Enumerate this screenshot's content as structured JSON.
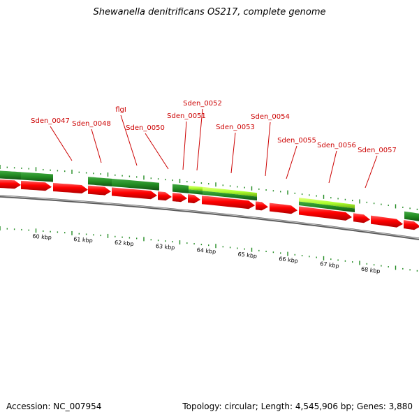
{
  "title": "Shewanella denitrificans OS217, complete genome",
  "footer": {
    "accession": "Accession: NC_007954",
    "summary": "Topology: circular; Length: 4,545,906 bp; Genes: 3,880"
  },
  "colors": {
    "forward_cds": "#ff0000",
    "reverse_cds": "#228b22",
    "reverse_cds_highlight": "#adff2f",
    "backbone": "#808080",
    "label": "#cc0000",
    "ticks": "#228b22"
  },
  "genes": [
    {
      "name": "Sden_0047"
    },
    {
      "name": "Sden_0048"
    },
    {
      "name": "flgI"
    },
    {
      "name": "Sden_0050"
    },
    {
      "name": "Sden_0051"
    },
    {
      "name": "Sden_0052"
    },
    {
      "name": "Sden_0053"
    },
    {
      "name": "Sden_0054"
    },
    {
      "name": "Sden_0055"
    },
    {
      "name": "Sden_0056"
    },
    {
      "name": "Sden_0057"
    }
  ],
  "kbp_labels": [
    "60 kbp",
    "61 kbp",
    "62 kbp",
    "63 kbp",
    "64 kbp",
    "65 kbp",
    "66 kbp",
    "67 kbp",
    "68 kbp"
  ]
}
